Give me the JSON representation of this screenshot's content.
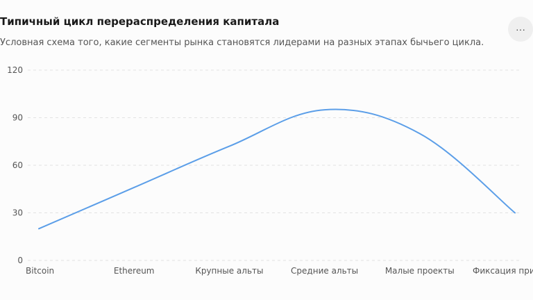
{
  "header": {
    "title": "Типичный цикл перераспределения капитала",
    "subtitle": "Условная схема того, какие сегменты рынка становятся лидерами на разных этапах бычьего цикла.",
    "more_label": "···"
  },
  "colors": {
    "line": "#5b9ee8",
    "grid": "#e2e2e2"
  },
  "chart_data": {
    "type": "line",
    "title": "Типичный цикл перераспределения капитала",
    "subtitle": "Условная схема того, какие сегменты рынка становятся лидерами на разных этапах бычьего цикла.",
    "categories": [
      "Bitcoin",
      "Ethereum",
      "Крупные альты",
      "Средние альты",
      "Малые проекты",
      "Фиксация прибыли"
    ],
    "values": [
      20,
      46,
      72,
      95,
      80,
      30
    ],
    "y_ticks": [
      0,
      30,
      60,
      90,
      120
    ],
    "ylim": [
      0,
      120
    ],
    "xlabel": "",
    "ylabel": "",
    "grid": true,
    "legend": "none"
  }
}
